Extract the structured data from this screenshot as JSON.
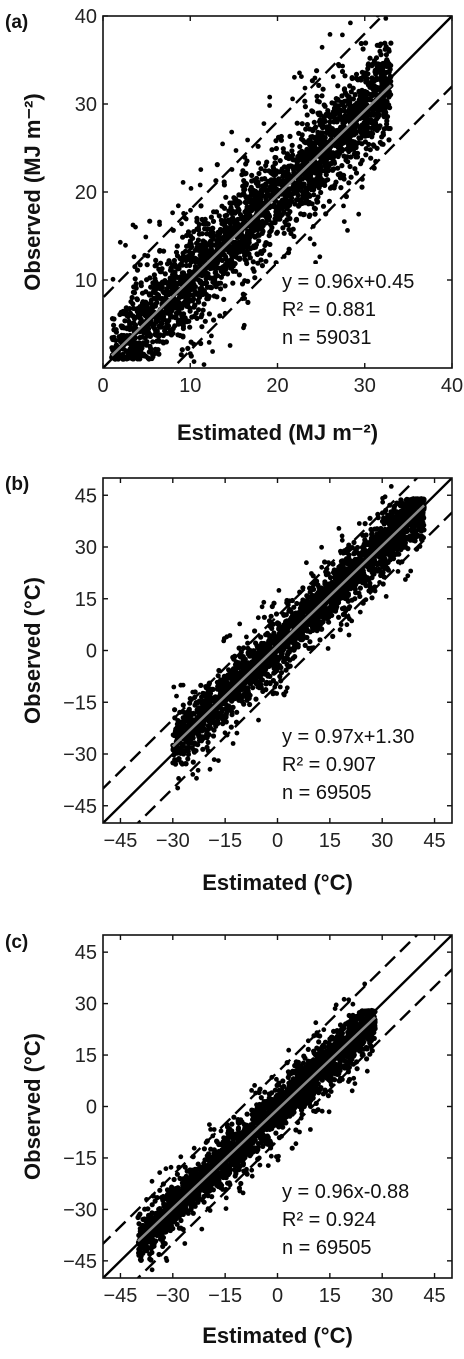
{
  "chart_data": [
    {
      "type": "scatter",
      "panel_label": "(a)",
      "xlabel": "Estimated (MJ m⁻²)",
      "ylabel": "Observed (MJ m⁻²)",
      "xlim": [
        0,
        40
      ],
      "ylim": [
        0,
        40
      ],
      "xticks": [
        0,
        10,
        20,
        30,
        40
      ],
      "yticks": [
        10,
        20,
        30,
        40
      ],
      "tick_labels_x": [
        "0",
        "10",
        "20",
        "30",
        "40"
      ],
      "tick_labels_y": [
        "10",
        "20",
        "30",
        "40"
      ],
      "cloud": {
        "x_range": [
          1,
          33
        ],
        "fit_slope": 0.96,
        "fit_intercept": 0.45,
        "spread": 3.3,
        "y_min": 1,
        "y_max": 37
      },
      "one_to_one_line": {
        "slope": 1,
        "intercept": 0
      },
      "dashed_bounds": {
        "offsets": [
          8,
          -8
        ]
      },
      "fit_line": {
        "slope": 0.96,
        "intercept": 0.45,
        "x_range": [
          1,
          33
        ]
      },
      "annotation": {
        "equation": "y = 0.96x+0.45",
        "r2": "R² = 0.881",
        "n": "n = 59031"
      },
      "colors": {
        "points": "#000000",
        "fit": "#888888",
        "lines": "#000000"
      },
      "grid": false
    },
    {
      "type": "scatter",
      "panel_label": "(b)",
      "xlabel": "Estimated (°C)",
      "ylabel": "Observed (°C)",
      "xlim": [
        -50,
        50
      ],
      "ylim": [
        -50,
        50
      ],
      "xticks": [
        -45,
        -30,
        -15,
        0,
        15,
        30,
        45
      ],
      "yticks": [
        -45,
        -30,
        -15,
        0,
        15,
        30,
        45
      ],
      "tick_labels_x": [
        "−45",
        "−30",
        "−15",
        "0",
        "15",
        "30",
        "45"
      ],
      "tick_labels_y": [
        "−45",
        "−30",
        "−15",
        "0",
        "15",
        "30",
        "45"
      ],
      "cloud": {
        "x_range": [
          -30,
          42
        ],
        "fit_slope": 0.97,
        "fit_intercept": 1.3,
        "spread": 4.5,
        "y_min": -33,
        "y_max": 44
      },
      "one_to_one_line": {
        "slope": 1,
        "intercept": 0
      },
      "dashed_bounds": {
        "offsets": [
          10,
          -10
        ]
      },
      "fit_line": {
        "slope": 0.97,
        "intercept": 1.3,
        "x_range": [
          -30,
          42
        ]
      },
      "annotation": {
        "equation": "y = 0.97x+1.30",
        "r2": "R² = 0.907",
        "n": "n = 69505"
      },
      "colors": {
        "points": "#000000",
        "fit": "#888888",
        "lines": "#000000"
      },
      "grid": false
    },
    {
      "type": "scatter",
      "panel_label": "(c)",
      "xlabel": "Estimated (°C)",
      "ylabel": "Observed (°C)",
      "xlim": [
        -50,
        50
      ],
      "ylim": [
        -50,
        50
      ],
      "xticks": [
        -45,
        -30,
        -15,
        0,
        15,
        30,
        45
      ],
      "yticks": [
        -45,
        -30,
        -15,
        0,
        15,
        30,
        45
      ],
      "tick_labels_x": [
        "−45",
        "−30",
        "−15",
        "0",
        "15",
        "30",
        "45"
      ],
      "tick_labels_y": [
        "−45",
        "−30",
        "−15",
        "0",
        "15",
        "30",
        "45"
      ],
      "cloud": {
        "x_range": [
          -40,
          28
        ],
        "fit_slope": 0.96,
        "fit_intercept": -0.88,
        "spread": 4.0,
        "y_min": -45,
        "y_max": 28
      },
      "one_to_one_line": {
        "slope": 1,
        "intercept": 0
      },
      "dashed_bounds": {
        "offsets": [
          10,
          -10
        ]
      },
      "fit_line": {
        "slope": 0.96,
        "intercept": -0.88,
        "x_range": [
          -40,
          28
        ]
      },
      "annotation": {
        "equation": "y = 0.96x-0.88",
        "r2": "R² = 0.924",
        "n": "n = 69505"
      },
      "colors": {
        "points": "#000000",
        "fit": "#888888",
        "lines": "#000000"
      },
      "grid": false
    }
  ]
}
